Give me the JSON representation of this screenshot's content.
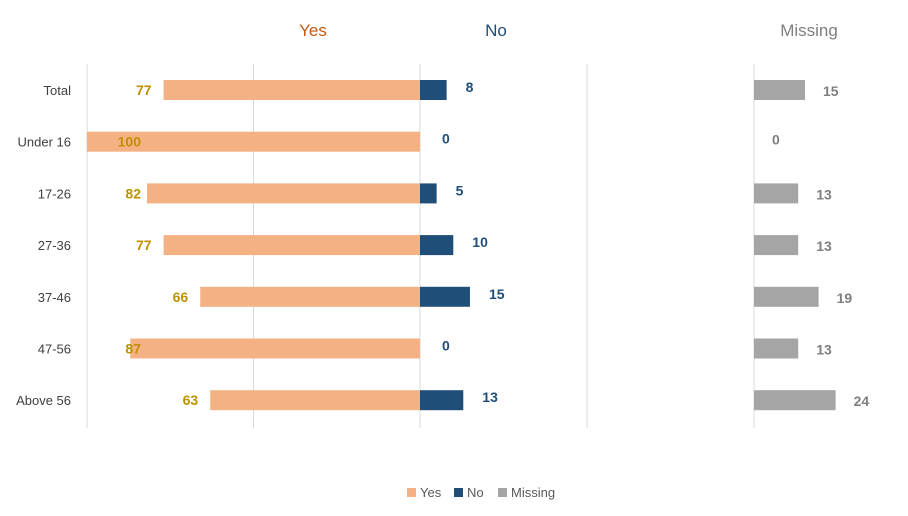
{
  "chart_data": {
    "type": "bar",
    "orientation": "horizontal",
    "categories": [
      "Total",
      "Under 16",
      "17-26",
      "27-36",
      "37-46",
      "47-56",
      "Above 56"
    ],
    "series": [
      {
        "name": "Yes",
        "values": [
          77,
          100,
          82,
          77,
          66,
          87,
          63
        ],
        "color": "#F4B183",
        "label_color": "#BF9000"
      },
      {
        "name": "No",
        "values": [
          8,
          0,
          5,
          10,
          15,
          0,
          13
        ],
        "color": "#1F4E79",
        "label_color": "#1F4E79"
      },
      {
        "name": "Missing",
        "values": [
          15,
          0,
          13,
          13,
          19,
          13,
          24
        ],
        "color": "#A5A5A5",
        "label_color": "#7F7F7F"
      }
    ],
    "panel_titles": {
      "yes": "Yes",
      "no": "No",
      "missing": "Missing"
    },
    "title_colors": {
      "yes": "#C55A11",
      "no": "#1F4E79",
      "missing": "#7F7F7F"
    },
    "xlim": [
      -100,
      100
    ],
    "grid": true,
    "legend": "bottom"
  }
}
